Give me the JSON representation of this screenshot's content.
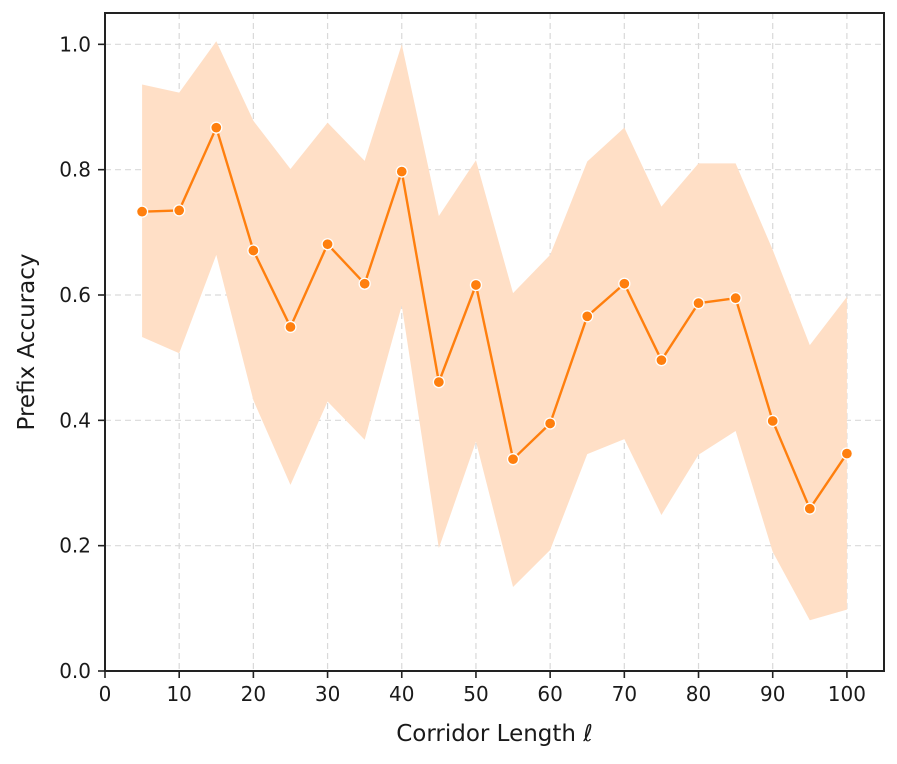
{
  "chart_data": {
    "type": "line",
    "title": "",
    "xlabel": "Corridor Length ℓ",
    "ylabel": "Prefix Accuracy",
    "xlim": [
      0,
      105
    ],
    "ylim": [
      0.0,
      1.05
    ],
    "x_ticks": [
      0,
      10,
      20,
      30,
      40,
      50,
      60,
      70,
      80,
      90,
      100
    ],
    "y_ticks": [
      0.0,
      0.2,
      0.4,
      0.6,
      0.8,
      1.0
    ],
    "x_tick_labels": [
      "0",
      "10",
      "20",
      "30",
      "40",
      "50",
      "60",
      "70",
      "80",
      "90",
      "100"
    ],
    "y_tick_labels": [
      "0.0",
      "0.2",
      "0.4",
      "0.6",
      "0.8",
      "1.0"
    ],
    "grid": true,
    "legend": "none",
    "colors": {
      "line": "#ff7f0e",
      "band": "#ffdfc6",
      "marker_edge": "#ffffff",
      "grid": "#d9d9d9",
      "axis": "#222222"
    },
    "series": [
      {
        "x": [
          5,
          10,
          15,
          20,
          25,
          30,
          35,
          40,
          45,
          50,
          55,
          60,
          65,
          70,
          75,
          80,
          85,
          90,
          95,
          100
        ],
        "y": [
          0.733,
          0.735,
          0.867,
          0.671,
          0.549,
          0.681,
          0.618,
          0.797,
          0.461,
          0.616,
          0.338,
          0.395,
          0.566,
          0.618,
          0.496,
          0.587,
          0.595,
          0.399,
          0.259,
          0.347
        ],
        "lower": [
          0.533,
          0.507,
          0.664,
          0.432,
          0.297,
          0.43,
          0.369,
          0.583,
          0.196,
          0.366,
          0.134,
          0.193,
          0.346,
          0.37,
          0.249,
          0.345,
          0.383,
          0.19,
          0.081,
          0.098
        ],
        "upper": [
          0.936,
          0.923,
          1.005,
          0.878,
          0.801,
          0.875,
          0.814,
          1.0,
          0.726,
          0.815,
          0.603,
          0.664,
          0.813,
          0.867,
          0.741,
          0.81,
          0.81,
          0.672,
          0.52,
          0.597
        ]
      }
    ]
  }
}
